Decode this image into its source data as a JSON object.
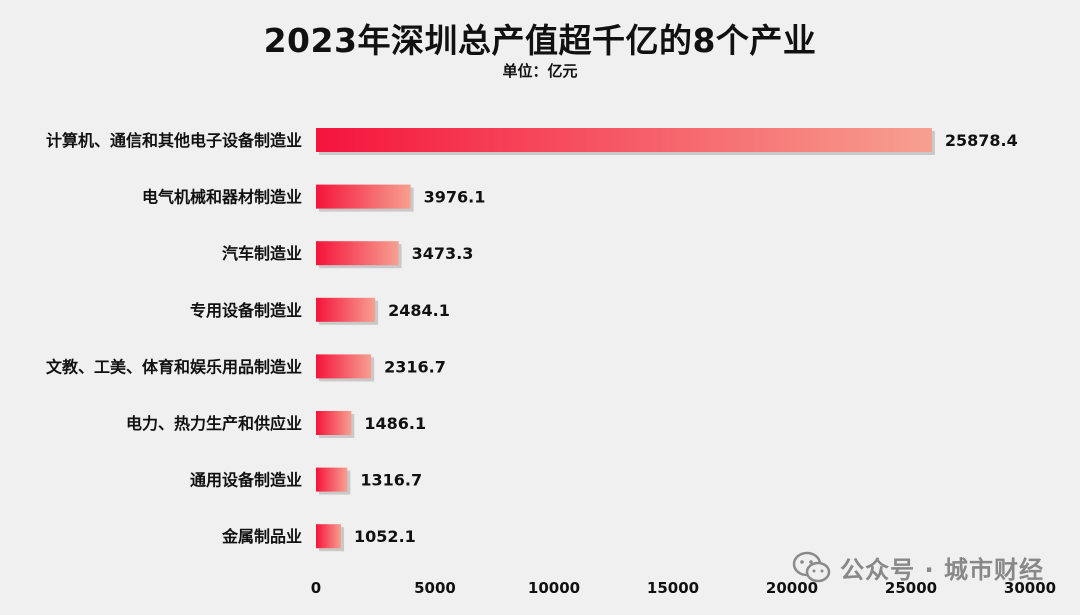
{
  "chart_data": {
    "type": "bar",
    "orientation": "horizontal",
    "title": "2023年深圳总产值超千亿的8个产业",
    "subtitle": "单位：亿元",
    "categories": [
      "计算机、通信和其他电子设备制造业",
      "电气机械和器材制造业",
      "汽车制造业",
      "专用设备制造业",
      "文教、工美、体育和娱乐用品制造业",
      "电力、热力生产和供应业",
      "通用设备制造业",
      "金属制品业"
    ],
    "values": [
      25878.4,
      3976.1,
      3473.3,
      2484.1,
      2316.7,
      1486.1,
      1316.7,
      1052.1
    ],
    "value_labels": [
      "25878.4",
      "3976.1",
      "3473.3",
      "2484.1",
      "2316.7",
      "1486.1",
      "1316.7",
      "1052.1"
    ],
    "xlim": [
      0,
      30000
    ],
    "xticks": [
      "0",
      "5000",
      "10000",
      "15000",
      "20000",
      "25000",
      "30000"
    ],
    "xtick_values": [
      0,
      5000,
      10000,
      15000,
      20000,
      25000,
      30000
    ],
    "grid": false,
    "bar_gradient": [
      "#f5143c",
      "#f7a090"
    ],
    "bar_shadow": "#c9c9c9"
  },
  "watermark": {
    "text": "公众号 · 城市财经",
    "icon": "wechat-icon"
  }
}
